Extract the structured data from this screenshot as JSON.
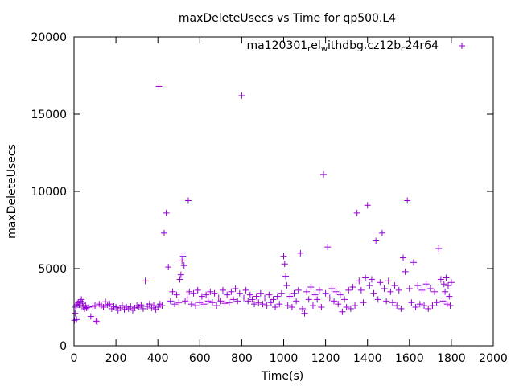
{
  "chart_data": {
    "type": "scatter",
    "title": "maxDeleteUsecs vs Time for qp500.L4",
    "xlabel": "Time(s)",
    "ylabel": "maxDeleteUsecs",
    "xlim": [
      0,
      2000
    ],
    "ylim": [
      0,
      20000
    ],
    "x_ticks": [
      0,
      200,
      400,
      600,
      800,
      1000,
      1200,
      1400,
      1600,
      1800,
      2000
    ],
    "y_ticks": [
      0,
      5000,
      10000,
      15000,
      20000
    ],
    "grid": false,
    "legend_position": "top-right",
    "marker_color": "#9400d3",
    "series": [
      {
        "legend_parts": [
          {
            "text": "ma120301",
            "shift": "none"
          },
          {
            "text": "r",
            "shift": "sub"
          },
          {
            "text": "el",
            "shift": "none"
          },
          {
            "text": "w",
            "shift": "sub"
          },
          {
            "text": "ithdbg.cz12b",
            "shift": "none"
          },
          {
            "text": "c",
            "shift": "sub"
          },
          {
            "text": "24r64",
            "shift": "none"
          }
        ],
        "points": [
          [
            2,
            1650
          ],
          [
            5,
            2100
          ],
          [
            8,
            2500
          ],
          [
            10,
            2600
          ],
          [
            12,
            1700
          ],
          [
            15,
            2700
          ],
          [
            20,
            2800
          ],
          [
            25,
            2650
          ],
          [
            30,
            2900
          ],
          [
            35,
            3000
          ],
          [
            40,
            2750
          ],
          [
            45,
            2500
          ],
          [
            50,
            2400
          ],
          [
            55,
            2600
          ],
          [
            60,
            2450
          ],
          [
            70,
            2500
          ],
          [
            80,
            1900
          ],
          [
            90,
            2550
          ],
          [
            100,
            2600
          ],
          [
            105,
            1600
          ],
          [
            110,
            1550
          ],
          [
            120,
            2700
          ],
          [
            130,
            2600
          ],
          [
            140,
            2500
          ],
          [
            150,
            2850
          ],
          [
            160,
            2650
          ],
          [
            170,
            2700
          ],
          [
            180,
            2400
          ],
          [
            190,
            2550
          ],
          [
            200,
            2500
          ],
          [
            210,
            2300
          ],
          [
            220,
            2450
          ],
          [
            230,
            2600
          ],
          [
            240,
            2350
          ],
          [
            250,
            2500
          ],
          [
            260,
            2400
          ],
          [
            270,
            2550
          ],
          [
            280,
            2300
          ],
          [
            290,
            2450
          ],
          [
            300,
            2600
          ],
          [
            310,
            2500
          ],
          [
            320,
            2650
          ],
          [
            330,
            2400
          ],
          [
            340,
            4200
          ],
          [
            350,
            2550
          ],
          [
            360,
            2700
          ],
          [
            370,
            2450
          ],
          [
            380,
            2600
          ],
          [
            390,
            2350
          ],
          [
            400,
            2500
          ],
          [
            405,
            16800
          ],
          [
            410,
            2700
          ],
          [
            420,
            2600
          ],
          [
            430,
            7300
          ],
          [
            440,
            8600
          ],
          [
            450,
            5100
          ],
          [
            460,
            2900
          ],
          [
            470,
            3500
          ],
          [
            480,
            2700
          ],
          [
            490,
            3300
          ],
          [
            500,
            2800
          ],
          [
            505,
            4300
          ],
          [
            510,
            4600
          ],
          [
            515,
            5500
          ],
          [
            520,
            5800
          ],
          [
            525,
            5200
          ],
          [
            530,
            2900
          ],
          [
            540,
            3100
          ],
          [
            545,
            9400
          ],
          [
            550,
            3500
          ],
          [
            560,
            2700
          ],
          [
            570,
            3400
          ],
          [
            580,
            2600
          ],
          [
            590,
            3600
          ],
          [
            600,
            2800
          ],
          [
            610,
            3200
          ],
          [
            620,
            2700
          ],
          [
            630,
            3300
          ],
          [
            640,
            2900
          ],
          [
            650,
            3500
          ],
          [
            660,
            2800
          ],
          [
            670,
            3400
          ],
          [
            680,
            2600
          ],
          [
            690,
            3100
          ],
          [
            700,
            2900
          ],
          [
            710,
            3600
          ],
          [
            720,
            2750
          ],
          [
            730,
            3300
          ],
          [
            740,
            2800
          ],
          [
            750,
            3500
          ],
          [
            760,
            3000
          ],
          [
            770,
            3700
          ],
          [
            780,
            2900
          ],
          [
            790,
            3400
          ],
          [
            800,
            16200
          ],
          [
            810,
            3100
          ],
          [
            820,
            3600
          ],
          [
            830,
            2900
          ],
          [
            840,
            3300
          ],
          [
            850,
            3000
          ],
          [
            860,
            2700
          ],
          [
            870,
            3200
          ],
          [
            880,
            2800
          ],
          [
            890,
            3400
          ],
          [
            900,
            2700
          ],
          [
            910,
            3100
          ],
          [
            920,
            2600
          ],
          [
            930,
            3300
          ],
          [
            940,
            2800
          ],
          [
            950,
            3000
          ],
          [
            960,
            2500
          ],
          [
            970,
            3200
          ],
          [
            980,
            2700
          ],
          [
            990,
            3400
          ],
          [
            1000,
            5800
          ],
          [
            1005,
            5300
          ],
          [
            1010,
            4500
          ],
          [
            1015,
            3900
          ],
          [
            1020,
            2600
          ],
          [
            1030,
            3200
          ],
          [
            1040,
            2500
          ],
          [
            1050,
            3400
          ],
          [
            1060,
            2900
          ],
          [
            1070,
            3600
          ],
          [
            1080,
            6000
          ],
          [
            1090,
            2400
          ],
          [
            1100,
            2100
          ],
          [
            1110,
            3500
          ],
          [
            1120,
            3000
          ],
          [
            1130,
            3800
          ],
          [
            1140,
            2600
          ],
          [
            1150,
            3300
          ],
          [
            1160,
            3000
          ],
          [
            1170,
            3600
          ],
          [
            1180,
            2500
          ],
          [
            1190,
            11100
          ],
          [
            1200,
            3400
          ],
          [
            1210,
            6400
          ],
          [
            1220,
            3100
          ],
          [
            1230,
            3700
          ],
          [
            1240,
            2900
          ],
          [
            1250,
            3500
          ],
          [
            1260,
            2700
          ],
          [
            1270,
            3300
          ],
          [
            1280,
            2200
          ],
          [
            1290,
            3000
          ],
          [
            1300,
            2500
          ],
          [
            1310,
            3600
          ],
          [
            1320,
            2400
          ],
          [
            1330,
            3800
          ],
          [
            1340,
            2600
          ],
          [
            1350,
            8600
          ],
          [
            1360,
            4200
          ],
          [
            1370,
            3600
          ],
          [
            1380,
            2800
          ],
          [
            1390,
            4400
          ],
          [
            1400,
            9100
          ],
          [
            1410,
            3900
          ],
          [
            1420,
            4300
          ],
          [
            1430,
            3400
          ],
          [
            1440,
            6800
          ],
          [
            1450,
            3000
          ],
          [
            1460,
            4100
          ],
          [
            1470,
            7300
          ],
          [
            1480,
            3700
          ],
          [
            1490,
            2900
          ],
          [
            1500,
            4200
          ],
          [
            1510,
            3500
          ],
          [
            1520,
            2800
          ],
          [
            1530,
            3900
          ],
          [
            1540,
            2600
          ],
          [
            1550,
            3600
          ],
          [
            1560,
            2400
          ],
          [
            1570,
            5700
          ],
          [
            1580,
            4800
          ],
          [
            1590,
            9400
          ],
          [
            1600,
            3700
          ],
          [
            1610,
            2800
          ],
          [
            1620,
            5400
          ],
          [
            1630,
            2500
          ],
          [
            1640,
            3900
          ],
          [
            1650,
            2700
          ],
          [
            1660,
            3600
          ],
          [
            1670,
            2600
          ],
          [
            1680,
            4000
          ],
          [
            1690,
            2400
          ],
          [
            1700,
            3700
          ],
          [
            1710,
            2600
          ],
          [
            1720,
            3500
          ],
          [
            1730,
            2800
          ],
          [
            1740,
            6300
          ],
          [
            1750,
            4300
          ],
          [
            1760,
            2900
          ],
          [
            1765,
            4000
          ],
          [
            1770,
            3500
          ],
          [
            1775,
            4400
          ],
          [
            1780,
            2700
          ],
          [
            1785,
            3900
          ],
          [
            1790,
            3200
          ],
          [
            1795,
            2600
          ],
          [
            1800,
            4100
          ]
        ]
      }
    ]
  }
}
